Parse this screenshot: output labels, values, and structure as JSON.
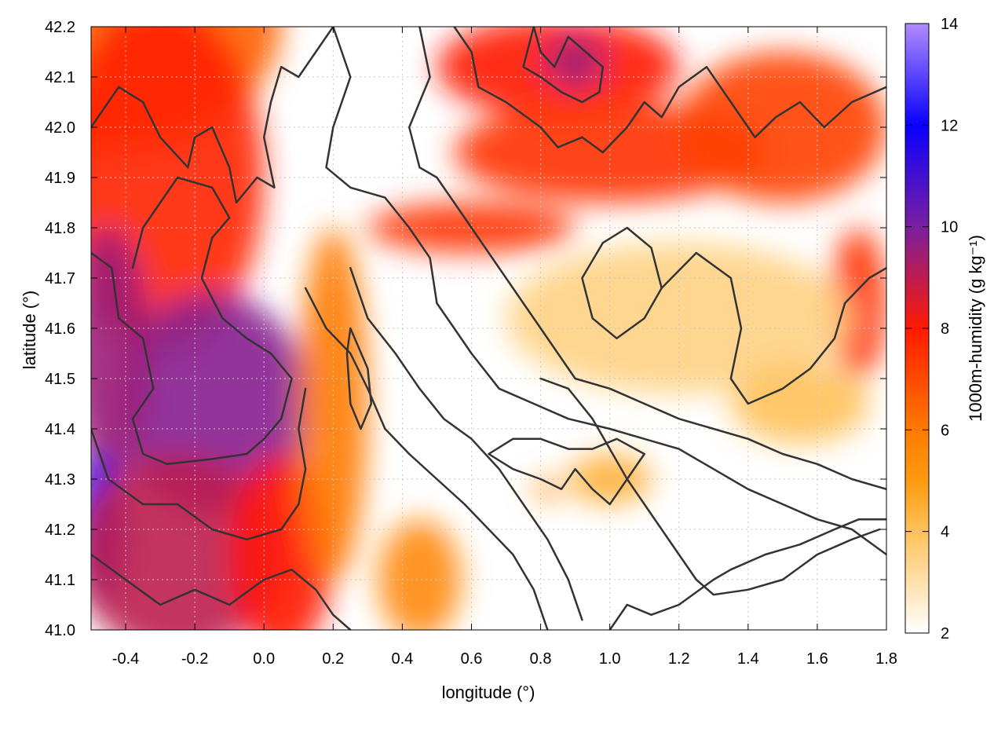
{
  "chart_data": {
    "type": "heatmap",
    "xlabel": "longitude (°)",
    "ylabel": "latitude (°)",
    "colorbar_label": "1000m-humidity (g kg⁻¹)",
    "xlim": [
      -0.5,
      1.8
    ],
    "ylim": [
      41.0,
      42.2
    ],
    "x_ticks": [
      -0.4,
      -0.2,
      0.0,
      0.2,
      0.4,
      0.6,
      0.8,
      1.0,
      1.2,
      1.4,
      1.6,
      1.8
    ],
    "x_tick_labels": [
      "-0.4",
      "-0.2",
      "0.0",
      "0.2",
      "0.4",
      "0.6",
      "0.8",
      "1.0",
      "1.2",
      "1.4",
      "1.6",
      "1.8"
    ],
    "y_ticks": [
      41.0,
      41.1,
      41.2,
      41.3,
      41.4,
      41.5,
      41.6,
      41.7,
      41.8,
      41.9,
      42.0,
      42.1,
      42.2
    ],
    "y_tick_labels": [
      "41.0",
      "41.1",
      "41.2",
      "41.3",
      "41.4",
      "41.5",
      "41.6",
      "41.7",
      "41.8",
      "41.9",
      "42.0",
      "42.1",
      "42.2"
    ],
    "colorbar_range": [
      2,
      14
    ],
    "colorbar_ticks": [
      2,
      4,
      6,
      8,
      10,
      12,
      14
    ],
    "colorbar_tick_labels": [
      "2",
      "4",
      "6",
      "8",
      "10",
      "12",
      "14"
    ],
    "colormap": [
      {
        "value": 2,
        "color": "#ffffff"
      },
      {
        "value": 4,
        "color": "#ffc15a"
      },
      {
        "value": 5,
        "color": "#ff9a10"
      },
      {
        "value": 6,
        "color": "#ff7a00"
      },
      {
        "value": 8,
        "color": "#ff1a00"
      },
      {
        "value": 10,
        "color": "#7a1fa0"
      },
      {
        "value": 12,
        "color": "#0a00ff"
      },
      {
        "value": 14,
        "color": "#b08cff"
      }
    ],
    "humidity_blobs": [
      {
        "lon": -0.5,
        "lat": 42.2,
        "humidity": 6.5,
        "rx": 0.55,
        "ry": 0.25
      },
      {
        "lon": -0.3,
        "lat": 41.9,
        "humidity": 7.8,
        "rx": 0.3,
        "ry": 0.35
      },
      {
        "lon": -0.15,
        "lat": 41.45,
        "humidity": 9.8,
        "rx": 0.28,
        "ry": 0.22
      },
      {
        "lon": -0.45,
        "lat": 41.55,
        "humidity": 9.5,
        "rx": 0.12,
        "ry": 0.25
      },
      {
        "lon": -0.48,
        "lat": 41.2,
        "humidity": 11.5,
        "rx": 0.08,
        "ry": 0.15
      },
      {
        "lon": -0.25,
        "lat": 41.15,
        "humidity": 9.0,
        "rx": 0.3,
        "ry": 0.2
      },
      {
        "lon": 0.05,
        "lat": 41.15,
        "humidity": 8.0,
        "rx": 0.15,
        "ry": 0.2
      },
      {
        "lon": 0.2,
        "lat": 41.45,
        "humidity": 6.0,
        "rx": 0.1,
        "ry": 0.35
      },
      {
        "lon": 0.45,
        "lat": 41.1,
        "humidity": 5.5,
        "rx": 0.12,
        "ry": 0.12
      },
      {
        "lon": 0.85,
        "lat": 42.12,
        "humidity": 8.0,
        "rx": 0.35,
        "ry": 0.1
      },
      {
        "lon": 0.9,
        "lat": 42.13,
        "humidity": 9.5,
        "rx": 0.08,
        "ry": 0.05
      },
      {
        "lon": 1.0,
        "lat": 41.95,
        "humidity": 7.5,
        "rx": 0.45,
        "ry": 0.1
      },
      {
        "lon": 0.6,
        "lat": 41.8,
        "humidity": 7.5,
        "rx": 0.3,
        "ry": 0.05
      },
      {
        "lon": 1.5,
        "lat": 42.0,
        "humidity": 7.2,
        "rx": 0.3,
        "ry": 0.15
      },
      {
        "lon": 1.72,
        "lat": 41.65,
        "humidity": 7.5,
        "rx": 0.08,
        "ry": 0.15
      },
      {
        "lon": 1.0,
        "lat": 41.3,
        "humidity": 4.5,
        "rx": 0.12,
        "ry": 0.05
      },
      {
        "lon": 0.82,
        "lat": 41.28,
        "humidity": 5.5,
        "rx": 0.04,
        "ry": 0.02
      },
      {
        "lon": 1.2,
        "lat": 41.62,
        "humidity": 3.5,
        "rx": 0.5,
        "ry": 0.15
      },
      {
        "lon": 1.55,
        "lat": 41.45,
        "humidity": 4.0,
        "rx": 0.2,
        "ry": 0.08
      }
    ],
    "contours": [
      [
        [
          -0.5,
          42.0
        ],
        [
          -0.42,
          42.08
        ],
        [
          -0.35,
          42.05
        ],
        [
          -0.3,
          41.98
        ],
        [
          -0.22,
          41.92
        ],
        [
          -0.2,
          41.98
        ],
        [
          -0.15,
          42.0
        ],
        [
          -0.1,
          41.92
        ],
        [
          -0.08,
          41.85
        ],
        [
          -0.02,
          41.9
        ],
        [
          0.03,
          41.88
        ],
        [
          0.0,
          41.98
        ],
        [
          0.02,
          42.05
        ],
        [
          0.05,
          42.12
        ],
        [
          0.1,
          42.1
        ],
        [
          0.15,
          42.15
        ],
        [
          0.2,
          42.2
        ]
      ],
      [
        [
          -0.5,
          41.75
        ],
        [
          -0.44,
          41.72
        ],
        [
          -0.42,
          41.62
        ],
        [
          -0.35,
          41.58
        ],
        [
          -0.32,
          41.48
        ],
        [
          -0.38,
          41.42
        ],
        [
          -0.35,
          41.35
        ],
        [
          -0.28,
          41.33
        ],
        [
          -0.15,
          41.34
        ],
        [
          -0.05,
          41.35
        ],
        [
          0.0,
          41.38
        ],
        [
          0.05,
          41.42
        ],
        [
          0.08,
          41.5
        ],
        [
          0.02,
          41.55
        ],
        [
          -0.05,
          41.58
        ],
        [
          -0.12,
          41.62
        ],
        [
          -0.18,
          41.7
        ],
        [
          -0.15,
          41.78
        ],
        [
          -0.1,
          41.82
        ],
        [
          -0.15,
          41.88
        ],
        [
          -0.25,
          41.9
        ],
        [
          -0.3,
          41.85
        ],
        [
          -0.35,
          41.8
        ],
        [
          -0.38,
          41.72
        ]
      ],
      [
        [
          -0.5,
          41.4
        ],
        [
          -0.45,
          41.3
        ],
        [
          -0.35,
          41.25
        ],
        [
          -0.25,
          41.25
        ],
        [
          -0.15,
          41.2
        ],
        [
          -0.05,
          41.18
        ],
        [
          0.05,
          41.2
        ],
        [
          0.1,
          41.25
        ],
        [
          0.12,
          41.32
        ],
        [
          0.1,
          41.4
        ],
        [
          0.12,
          41.48
        ]
      ],
      [
        [
          -0.5,
          41.15
        ],
        [
          -0.4,
          41.1
        ],
        [
          -0.3,
          41.05
        ],
        [
          -0.2,
          41.08
        ],
        [
          -0.1,
          41.05
        ],
        [
          0.0,
          41.1
        ],
        [
          0.08,
          41.12
        ],
        [
          0.15,
          41.08
        ],
        [
          0.2,
          41.03
        ],
        [
          0.25,
          41.0
        ]
      ],
      [
        [
          0.2,
          42.2
        ],
        [
          0.25,
          42.1
        ],
        [
          0.2,
          42.0
        ],
        [
          0.18,
          41.92
        ],
        [
          0.25,
          41.88
        ],
        [
          0.35,
          41.86
        ],
        [
          0.42,
          41.8
        ],
        [
          0.48,
          41.74
        ],
        [
          0.5,
          41.65
        ],
        [
          0.55,
          41.6
        ],
        [
          0.6,
          41.55
        ],
        [
          0.68,
          41.48
        ],
        [
          0.78,
          41.45
        ],
        [
          0.88,
          41.42
        ],
        [
          1.0,
          41.4
        ],
        [
          1.1,
          41.38
        ],
        [
          1.2,
          41.36
        ],
        [
          1.3,
          41.32
        ],
        [
          1.4,
          41.28
        ],
        [
          1.5,
          41.25
        ],
        [
          1.6,
          41.22
        ],
        [
          1.7,
          41.2
        ],
        [
          1.8,
          41.15
        ]
      ],
      [
        [
          0.45,
          42.2
        ],
        [
          0.48,
          42.1
        ],
        [
          0.42,
          42.0
        ],
        [
          0.45,
          41.92
        ],
        [
          0.5,
          41.9
        ],
        [
          0.55,
          41.85
        ],
        [
          0.6,
          41.8
        ],
        [
          0.65,
          41.75
        ],
        [
          0.7,
          41.7
        ],
        [
          0.75,
          41.65
        ],
        [
          0.8,
          41.6
        ],
        [
          0.85,
          41.55
        ],
        [
          0.9,
          41.5
        ],
        [
          1.0,
          41.48
        ],
        [
          1.1,
          41.45
        ],
        [
          1.2,
          41.42
        ],
        [
          1.3,
          41.4
        ],
        [
          1.4,
          41.38
        ],
        [
          1.5,
          41.35
        ],
        [
          1.6,
          41.33
        ],
        [
          1.7,
          41.3
        ],
        [
          1.8,
          41.28
        ]
      ],
      [
        [
          0.12,
          41.68
        ],
        [
          0.18,
          41.6
        ],
        [
          0.25,
          41.55
        ],
        [
          0.3,
          41.48
        ],
        [
          0.35,
          41.4
        ],
        [
          0.42,
          41.35
        ],
        [
          0.5,
          41.3
        ],
        [
          0.58,
          41.25
        ],
        [
          0.65,
          41.2
        ],
        [
          0.72,
          41.15
        ],
        [
          0.78,
          41.08
        ],
        [
          0.82,
          41.0
        ]
      ],
      [
        [
          0.25,
          41.72
        ],
        [
          0.3,
          41.62
        ],
        [
          0.38,
          41.55
        ],
        [
          0.45,
          41.48
        ],
        [
          0.52,
          41.42
        ],
        [
          0.6,
          41.38
        ],
        [
          0.68,
          41.32
        ],
        [
          0.75,
          41.25
        ],
        [
          0.82,
          41.18
        ],
        [
          0.88,
          41.1
        ],
        [
          0.92,
          41.02
        ]
      ],
      [
        [
          0.8,
          41.5
        ],
        [
          0.88,
          41.48
        ],
        [
          0.95,
          41.42
        ],
        [
          1.0,
          41.36
        ],
        [
          1.05,
          41.3
        ],
        [
          1.1,
          41.25
        ],
        [
          1.15,
          41.2
        ],
        [
          1.2,
          41.15
        ],
        [
          1.25,
          41.1
        ],
        [
          1.3,
          41.07
        ],
        [
          1.4,
          41.08
        ],
        [
          1.5,
          41.1
        ],
        [
          1.6,
          41.15
        ],
        [
          1.7,
          41.18
        ],
        [
          1.78,
          41.2
        ]
      ],
      [
        [
          1.0,
          41.0
        ],
        [
          1.05,
          41.05
        ],
        [
          1.12,
          41.03
        ],
        [
          1.2,
          41.05
        ],
        [
          1.3,
          41.1
        ],
        [
          1.35,
          41.12
        ],
        [
          1.45,
          41.15
        ],
        [
          1.55,
          41.17
        ],
        [
          1.65,
          41.2
        ],
        [
          1.72,
          41.22
        ],
        [
          1.8,
          41.22
        ]
      ],
      [
        [
          0.55,
          42.2
        ],
        [
          0.6,
          42.15
        ],
        [
          0.62,
          42.08
        ],
        [
          0.7,
          42.05
        ],
        [
          0.8,
          42.0
        ],
        [
          0.85,
          41.96
        ],
        [
          0.92,
          41.98
        ],
        [
          0.98,
          41.95
        ],
        [
          1.05,
          42.0
        ],
        [
          1.1,
          42.05
        ],
        [
          1.15,
          42.02
        ],
        [
          1.2,
          42.08
        ],
        [
          1.28,
          42.12
        ],
        [
          1.35,
          42.05
        ],
        [
          1.42,
          41.98
        ],
        [
          1.48,
          42.02
        ],
        [
          1.55,
          42.05
        ],
        [
          1.62,
          42.0
        ],
        [
          1.7,
          42.05
        ],
        [
          1.8,
          42.08
        ]
      ],
      [
        [
          0.78,
          42.2
        ],
        [
          0.8,
          42.15
        ],
        [
          0.84,
          42.12
        ],
        [
          0.88,
          42.18
        ],
        [
          0.93,
          42.15
        ],
        [
          0.98,
          42.12
        ],
        [
          0.97,
          42.07
        ],
        [
          0.92,
          42.05
        ],
        [
          0.86,
          42.07
        ],
        [
          0.8,
          42.1
        ],
        [
          0.75,
          42.12
        ],
        [
          0.78,
          42.2
        ]
      ],
      [
        [
          1.15,
          41.68
        ],
        [
          1.25,
          41.75
        ],
        [
          1.35,
          41.7
        ],
        [
          1.38,
          41.6
        ],
        [
          1.35,
          41.5
        ],
        [
          1.4,
          41.45
        ],
        [
          1.5,
          41.48
        ],
        [
          1.58,
          41.52
        ],
        [
          1.65,
          41.58
        ],
        [
          1.68,
          41.65
        ],
        [
          1.75,
          41.7
        ],
        [
          1.8,
          41.72
        ]
      ],
      [
        [
          0.65,
          41.35
        ],
        [
          0.72,
          41.32
        ],
        [
          0.8,
          41.3
        ],
        [
          0.86,
          41.28
        ],
        [
          0.9,
          41.32
        ],
        [
          0.95,
          41.28
        ],
        [
          1.0,
          41.25
        ],
        [
          1.05,
          41.3
        ],
        [
          1.1,
          41.35
        ],
        [
          1.02,
          41.38
        ],
        [
          0.95,
          41.36
        ],
        [
          0.88,
          41.36
        ],
        [
          0.8,
          41.38
        ],
        [
          0.72,
          41.38
        ],
        [
          0.65,
          41.35
        ]
      ],
      [
        [
          0.25,
          41.6
        ],
        [
          0.3,
          41.52
        ],
        [
          0.31,
          41.45
        ],
        [
          0.28,
          41.4
        ],
        [
          0.25,
          41.45
        ],
        [
          0.24,
          41.55
        ],
        [
          0.25,
          41.6
        ]
      ],
      [
        [
          0.98,
          41.77
        ],
        [
          1.05,
          41.8
        ],
        [
          1.12,
          41.76
        ],
        [
          1.15,
          41.68
        ],
        [
          1.1,
          41.62
        ],
        [
          1.02,
          41.58
        ],
        [
          0.95,
          41.62
        ],
        [
          0.92,
          41.7
        ],
        [
          0.98,
          41.77
        ]
      ]
    ]
  }
}
